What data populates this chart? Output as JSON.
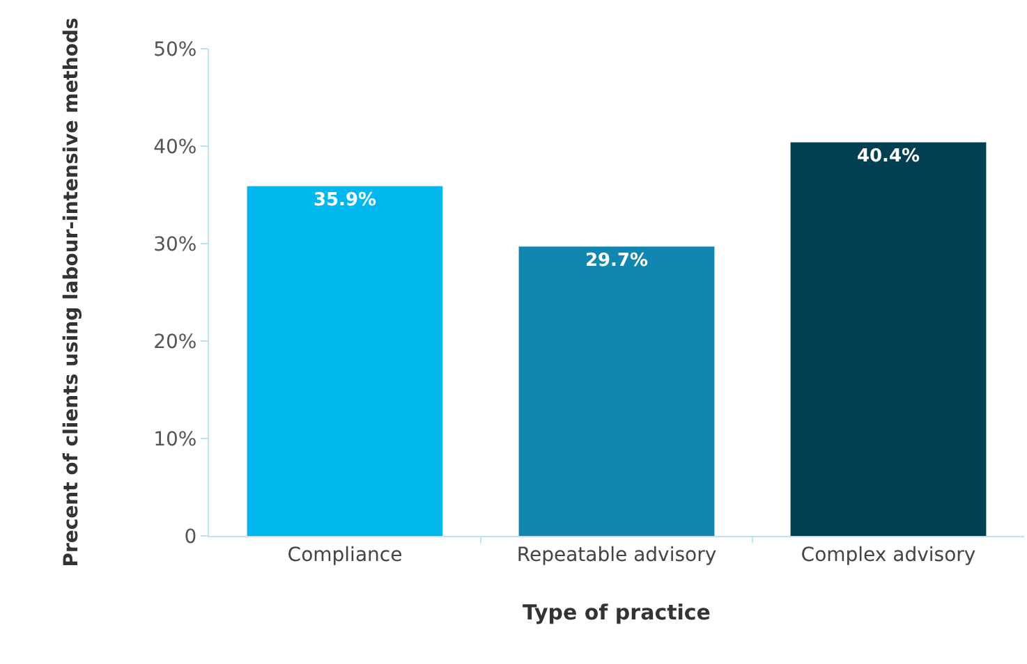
{
  "chart_data": {
    "type": "bar",
    "xlabel": "Type of practice",
    "ylabel": "Precent of clients using labour-intensive methods",
    "categories": [
      "Compliance",
      "Repeatable advisory",
      "Complex advisory"
    ],
    "values": [
      35.9,
      29.7,
      40.4
    ],
    "colors": [
      "#00b8ee",
      "#1186b0",
      "#023f52"
    ],
    "value_labels": [
      "35.9%",
      "29.7%",
      "40.4%"
    ],
    "ylim": [
      0,
      50
    ],
    "yticks": [
      0,
      {
        "value": 10,
        "label": "10%"
      },
      {
        "value": 20,
        "label": "20%"
      },
      {
        "value": 30,
        "label": "30%"
      },
      {
        "value": 40,
        "label": "40%"
      },
      {
        "value": 50,
        "label": "50%"
      }
    ],
    "legend": false
  }
}
